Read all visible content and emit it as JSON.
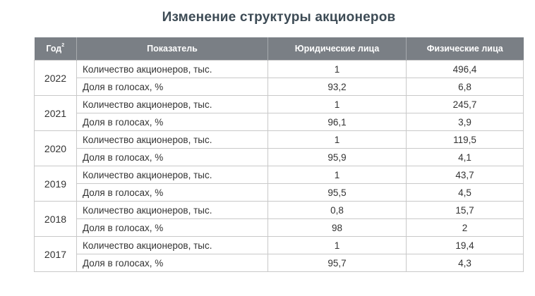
{
  "title": "Изменение структуры акционеров",
  "header": {
    "year": "Год",
    "year_footnote": "2",
    "indicator": "Показатель",
    "legal": "Юридические лица",
    "individuals": "Физические лица"
  },
  "rows": [
    {
      "year": "2022",
      "count_label": "Количество акционеров, тыс.",
      "count_legal": "1",
      "count_individuals": "496,4",
      "share_label": "Доля в голосах, %",
      "share_legal": "93,2",
      "share_individuals": "6,8"
    },
    {
      "year": "2021",
      "count_label": "Количество акционеров, тыс.",
      "count_legal": "1",
      "count_individuals": "245,7",
      "share_label": "Доля в голосах, %",
      "share_legal": "96,1",
      "share_individuals": "3,9"
    },
    {
      "year": "2020",
      "count_label": "Количество акционеров, тыс.",
      "count_legal": "1",
      "count_individuals": "119,5",
      "share_label": "Доля в голосах, %",
      "share_legal": "95,9",
      "share_individuals": "4,1"
    },
    {
      "year": "2019",
      "count_label": "Количество акционеров, тыс.",
      "count_legal": "1",
      "count_individuals": "43,7",
      "share_label": "Доля в голосах, %",
      "share_legal": "95,5",
      "share_individuals": "4,5"
    },
    {
      "year": "2018",
      "count_label": "Количество акционеров, тыс.",
      "count_legal": "0,8",
      "count_individuals": "15,7",
      "share_label": "Доля в голосах, %",
      "share_legal": "98",
      "share_individuals": "2"
    },
    {
      "year": "2017",
      "count_label": "Количество акционеров, тыс.",
      "count_legal": "1",
      "count_individuals": "19,4",
      "share_label": "Доля в голосах, %",
      "share_legal": "95,7",
      "share_individuals": "4,3"
    }
  ]
}
